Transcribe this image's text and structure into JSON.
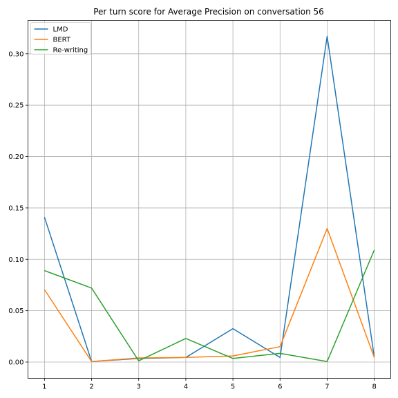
{
  "chart_data": {
    "type": "line",
    "title": "Per turn score for Average Precision on conversation 56",
    "xlabel": "",
    "ylabel": "",
    "x": [
      1,
      2,
      3,
      4,
      5,
      6,
      7,
      8
    ],
    "xlim": [
      0.65,
      8.35
    ],
    "ylim": [
      -0.0158,
      0.3325
    ],
    "xticks": [
      1,
      2,
      3,
      4,
      5,
      6,
      7,
      8
    ],
    "yticks": [
      "0.00",
      "0.05",
      "0.10",
      "0.15",
      "0.20",
      "0.25",
      "0.30"
    ],
    "grid": true,
    "legend_position": "top-left",
    "series": [
      {
        "name": "LMD",
        "color": "#1f77b4",
        "values": [
          0.141,
          0.0005,
          0.0035,
          0.0045,
          0.0325,
          0.0045,
          0.317,
          0.005
        ]
      },
      {
        "name": "BERT",
        "color": "#ff7f0e",
        "values": [
          0.0705,
          0.0005,
          0.004,
          0.0045,
          0.006,
          0.015,
          0.13,
          0.0045
        ]
      },
      {
        "name": "Re-writing",
        "color": "#2ca02c",
        "values": [
          0.089,
          0.072,
          0.0012,
          0.023,
          0.0035,
          0.0085,
          0.0005,
          0.109
        ]
      }
    ]
  }
}
